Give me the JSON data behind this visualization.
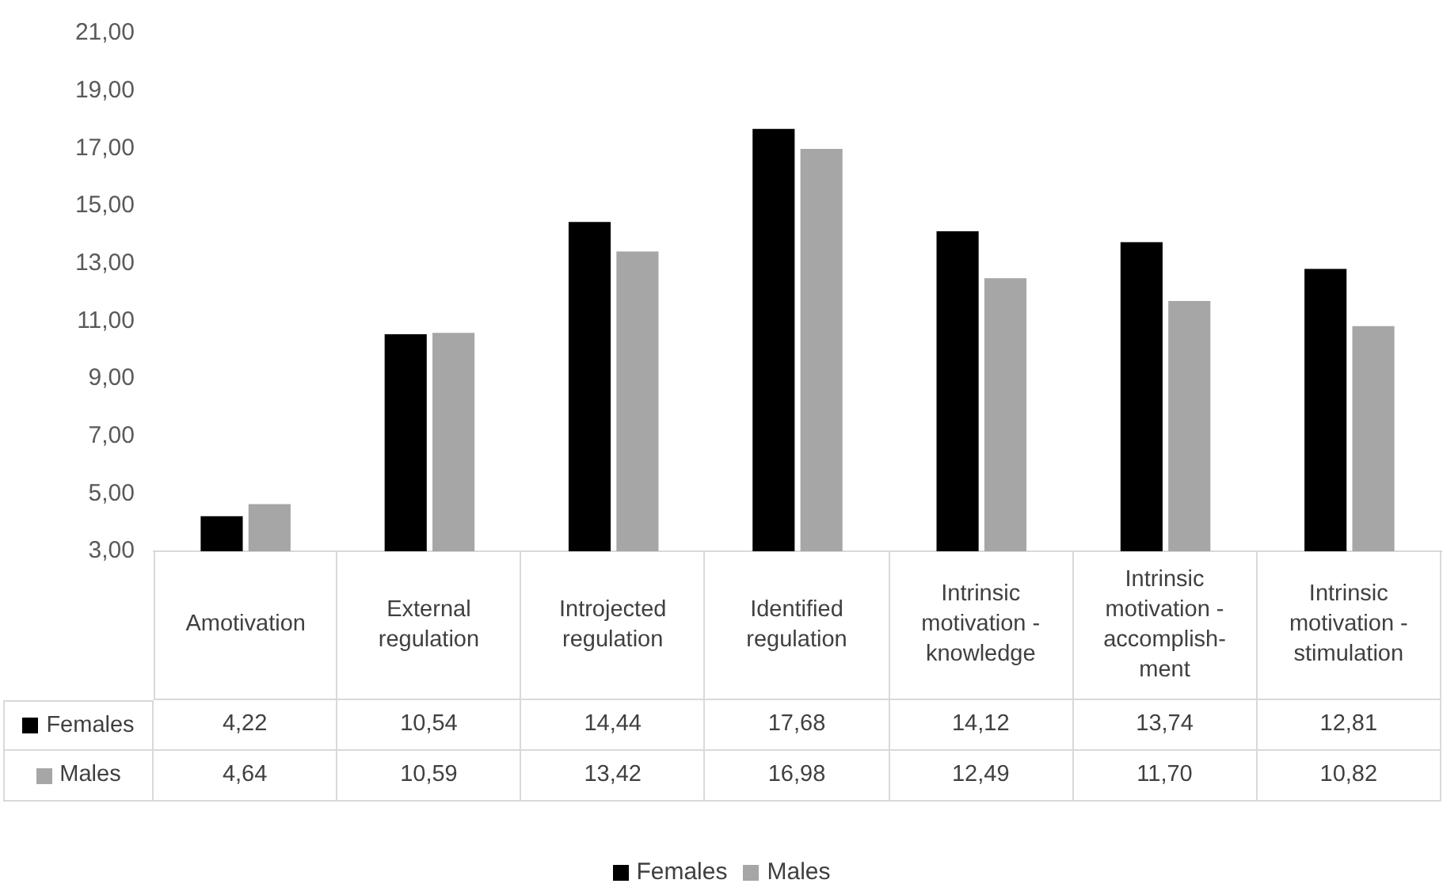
{
  "chart_data": {
    "type": "bar",
    "categories": [
      "Amotivation",
      "External regulation",
      "Introjected regulation",
      "Identified regulation",
      "Intrinsic motivation - knowledge",
      "Intrinsic motivation - accomplish-ment",
      "Intrinsic motivation - stimulation"
    ],
    "series": [
      {
        "name": "Females",
        "color": "#000000",
        "values": [
          4.22,
          10.54,
          14.44,
          17.68,
          14.12,
          13.74,
          12.81
        ],
        "value_labels": [
          "4,22",
          "10,54",
          "14,44",
          "17,68",
          "14,12",
          "13,74",
          "12,81"
        ]
      },
      {
        "name": "Males",
        "color": "#a6a6a6",
        "values": [
          4.64,
          10.59,
          13.42,
          16.98,
          12.49,
          11.7,
          10.82
        ],
        "value_labels": [
          "4,64",
          "10,59",
          "13,42",
          "16,98",
          "12,49",
          "11,70",
          "10,82"
        ]
      }
    ],
    "ylim": [
      3,
      21
    ],
    "yticks": [
      {
        "value": 3,
        "label": "3,00"
      },
      {
        "value": 5,
        "label": "5,00"
      },
      {
        "value": 7,
        "label": "7,00"
      },
      {
        "value": 9,
        "label": "9,00"
      },
      {
        "value": 11,
        "label": "11,00"
      },
      {
        "value": 13,
        "label": "13,00"
      },
      {
        "value": 15,
        "label": "15,00"
      },
      {
        "value": 17,
        "label": "17,00"
      },
      {
        "value": 19,
        "label": "19,00"
      },
      {
        "value": 21,
        "label": "21,00"
      }
    ],
    "grid": false,
    "legend": "bottom"
  }
}
